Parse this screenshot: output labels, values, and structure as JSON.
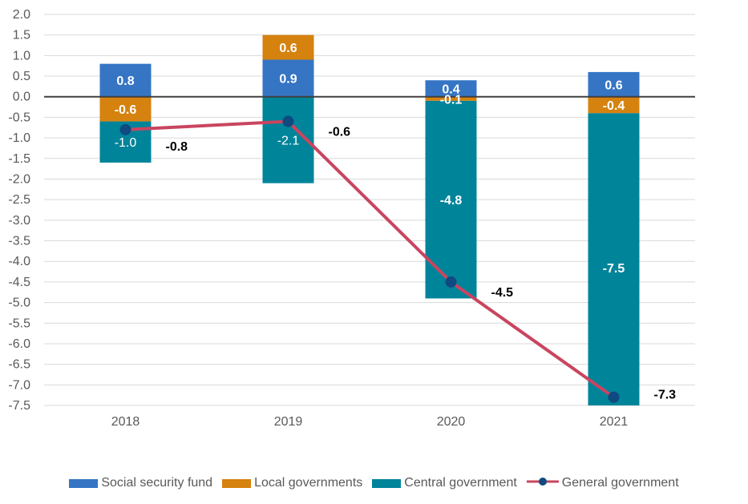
{
  "chart_data": {
    "type": "bar",
    "stacked": true,
    "categories": [
      "2018",
      "2019",
      "2020",
      "2021"
    ],
    "ylim": [
      -7.5,
      2.0
    ],
    "ytick_step": 0.5,
    "grid": true,
    "legend_position": "bottom",
    "series": [
      {
        "name": "Social security fund",
        "kind": "bar",
        "color": "#3575c4",
        "values": [
          0.8,
          0.9,
          0.4,
          0.6
        ],
        "labels": [
          "0.8",
          "0.9",
          "0.4",
          "0.6"
        ]
      },
      {
        "name": "Local governments",
        "kind": "bar",
        "color": "#d5820f",
        "values": [
          -0.6,
          0.6,
          -0.1,
          -0.4
        ],
        "labels": [
          "-0.6",
          "0.6",
          "-0.1",
          "-0.4"
        ]
      },
      {
        "name": "Central government",
        "kind": "bar",
        "color": "#00849a",
        "values": [
          -1.0,
          -2.1,
          -4.8,
          -7.5
        ],
        "labels": [
          "-1.0",
          "-2.1",
          "-4.8",
          "-7.5"
        ]
      },
      {
        "name": "General government",
        "kind": "line",
        "color": "#c9455f",
        "marker_color": "#0f4a80",
        "values": [
          -0.8,
          -0.6,
          -4.5,
          -7.3
        ],
        "labels": [
          "-0.8",
          "-0.6",
          "-4.5",
          "-7.3"
        ]
      }
    ]
  }
}
